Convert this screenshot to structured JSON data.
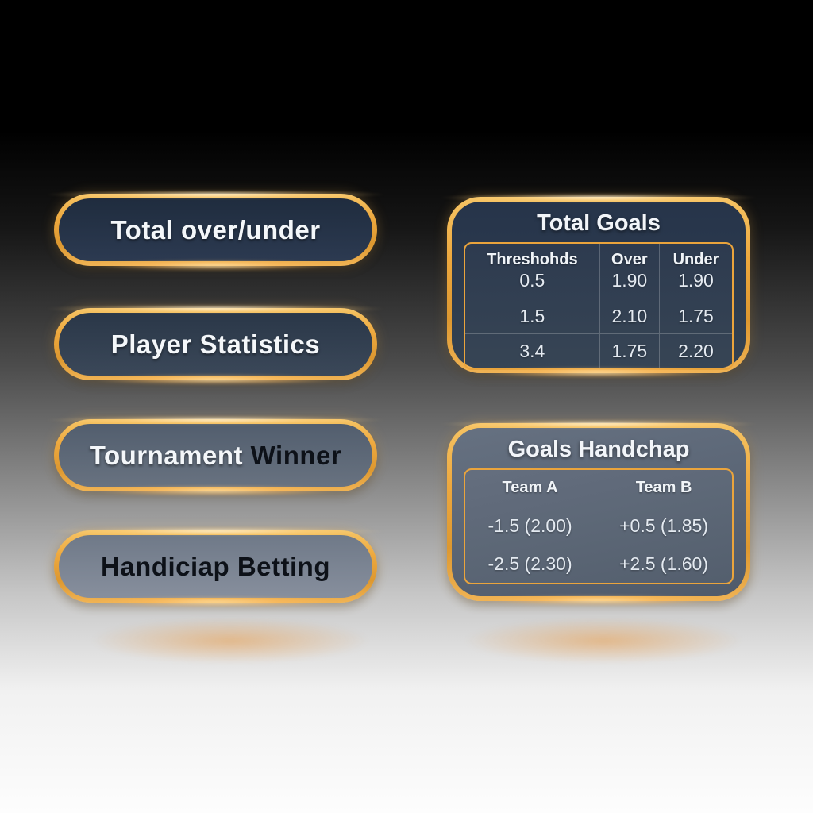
{
  "menu": {
    "items": [
      {
        "label": "Total over/under"
      },
      {
        "label": "Player Statistics"
      },
      {
        "label": "Tournament Winner",
        "label_light": "Tournament ",
        "label_dark": "Winner"
      },
      {
        "label": "Handiciap Betting"
      }
    ]
  },
  "panels": [
    {
      "title": "Total Goals",
      "columns": [
        "Threshohds",
        "Over",
        "Under"
      ],
      "rows": [
        [
          "0.5",
          "1.90",
          "1.90"
        ],
        [
          "1.5",
          "2.10",
          "1.75"
        ],
        [
          "3.4",
          "1.75",
          "2.20"
        ]
      ]
    },
    {
      "title": "Goals Handchap",
      "columns": [
        "Team A",
        "Team B"
      ],
      "rows": [
        [
          "-1.5 (2.00)",
          "+0.5 (1.85)"
        ],
        [
          "-2.5 (2.30)",
          "+2.5 (1.60)"
        ]
      ]
    }
  ],
  "colors": {
    "gold_accent": "#eda83e",
    "dark_panel": "#2b3950",
    "light_panel": "#6f7988",
    "glow_orange": "#e9963c"
  }
}
